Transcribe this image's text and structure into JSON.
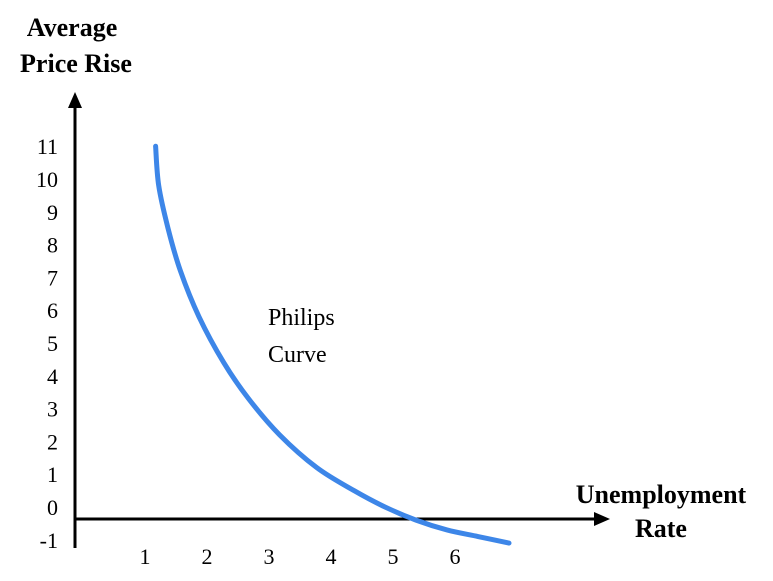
{
  "chart_data": {
    "type": "line",
    "ylabel_lines": [
      "Average",
      "Price Rise"
    ],
    "xlabel_lines": [
      "Unemployment",
      "Rate"
    ],
    "annotation_lines": [
      "Philips",
      "Curve"
    ],
    "xlim": [
      0,
      7
    ],
    "ylim": [
      -1,
      11
    ],
    "x_ticks": [
      1,
      2,
      3,
      4,
      5,
      6
    ],
    "y_ticks": [
      -1,
      0,
      1,
      2,
      3,
      4,
      5,
      6,
      7,
      8,
      9,
      10,
      11
    ],
    "grid": false,
    "line_color": "#3d86e8",
    "series": [
      {
        "x": [
          1.3,
          1.35,
          1.5,
          1.7,
          2.0,
          2.4,
          2.8,
          3.3,
          3.9,
          4.5,
          5.0,
          5.5,
          6.0,
          6.5,
          7.0
        ],
        "y": [
          11.0,
          9.8,
          8.5,
          7.2,
          5.8,
          4.4,
          3.3,
          2.2,
          1.2,
          0.5,
          0.0,
          -0.4,
          -0.7,
          -0.9,
          -1.1
        ]
      }
    ]
  }
}
